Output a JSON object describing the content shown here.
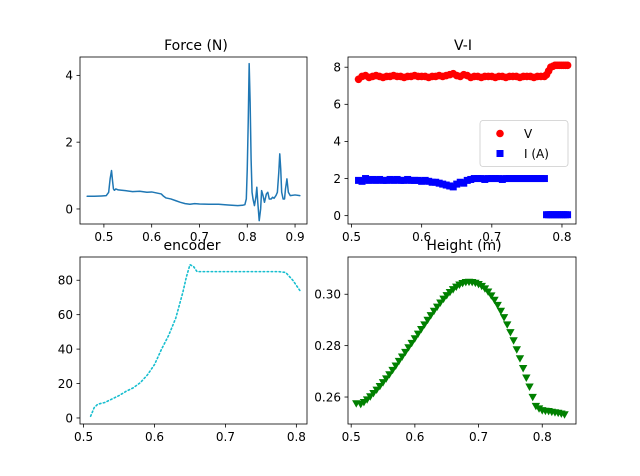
{
  "figure": {
    "background": "#ffffff"
  },
  "chart_data": [
    {
      "type": "line",
      "title": "Force (N)",
      "xlabel": "",
      "ylabel": "",
      "xlim": [
        0.45,
        0.925
      ],
      "ylim": [
        -0.45,
        4.55
      ],
      "xticks": [
        0.5,
        0.6,
        0.7,
        0.8,
        0.9
      ],
      "xtick_labels": [
        "0.5",
        "0.6",
        "0.7",
        "0.8",
        "0.9"
      ],
      "yticks": [
        0,
        2,
        4
      ],
      "ytick_labels": [
        "0",
        "2",
        "4"
      ],
      "grid": false,
      "series": [
        {
          "color": "#1f77b4",
          "style": "solid",
          "marker": "none",
          "x": [
            0.465,
            0.48,
            0.495,
            0.505,
            0.51,
            0.513,
            0.516,
            0.518,
            0.52,
            0.522,
            0.525,
            0.53,
            0.545,
            0.56,
            0.575,
            0.59,
            0.6,
            0.61,
            0.62,
            0.625,
            0.63,
            0.64,
            0.65,
            0.66,
            0.67,
            0.68,
            0.69,
            0.7,
            0.72,
            0.74,
            0.76,
            0.78,
            0.79,
            0.795,
            0.798,
            0.8,
            0.802,
            0.804,
            0.806,
            0.808,
            0.81,
            0.812,
            0.815,
            0.818,
            0.82,
            0.822,
            0.825,
            0.828,
            0.83,
            0.833,
            0.836,
            0.84,
            0.843,
            0.846,
            0.85,
            0.853,
            0.856,
            0.86,
            0.863,
            0.866,
            0.868,
            0.87,
            0.872,
            0.875,
            0.878,
            0.88,
            0.883,
            0.886,
            0.89,
            0.9,
            0.91
          ],
          "y": [
            0.38,
            0.38,
            0.39,
            0.4,
            0.5,
            0.9,
            1.15,
            0.85,
            0.6,
            0.56,
            0.6,
            0.57,
            0.55,
            0.52,
            0.53,
            0.5,
            0.51,
            0.48,
            0.45,
            0.38,
            0.33,
            0.3,
            0.25,
            0.2,
            0.16,
            0.14,
            0.16,
            0.15,
            0.14,
            0.14,
            0.12,
            0.1,
            0.11,
            0.13,
            0.3,
            1.2,
            2.6,
            4.35,
            3.2,
            1.5,
            0.5,
            0.3,
            0.1,
            0.35,
            0.65,
            0.2,
            -0.35,
            0.0,
            0.55,
            0.4,
            0.2,
            0.45,
            0.5,
            0.3,
            0.3,
            0.35,
            0.32,
            0.4,
            0.5,
            1.1,
            1.65,
            1.2,
            0.5,
            0.3,
            0.3,
            0.6,
            0.9,
            0.5,
            0.4,
            0.42,
            0.4
          ]
        }
      ]
    },
    {
      "type": "scatter",
      "title": "V-I",
      "xlabel": "",
      "ylabel": "",
      "xlim": [
        0.495,
        0.82
      ],
      "ylim": [
        -0.45,
        8.55
      ],
      "xticks": [
        0.5,
        0.6,
        0.7,
        0.8
      ],
      "xtick_labels": [
        "0.5",
        "0.6",
        "0.7",
        "0.8"
      ],
      "yticks": [
        0,
        2,
        4,
        6,
        8
      ],
      "ytick_labels": [
        "0",
        "2",
        "4",
        "6",
        "8"
      ],
      "grid": false,
      "legend": {
        "placement": "center-right",
        "entries": [
          "V",
          "I (A)"
        ]
      },
      "series": [
        {
          "name": "V",
          "color": "#ff0000",
          "marker": "circle",
          "x": [
            0.51,
            0.515,
            0.52,
            0.525,
            0.53,
            0.535,
            0.54,
            0.545,
            0.55,
            0.555,
            0.56,
            0.565,
            0.57,
            0.575,
            0.58,
            0.585,
            0.59,
            0.595,
            0.6,
            0.605,
            0.61,
            0.615,
            0.62,
            0.625,
            0.63,
            0.635,
            0.64,
            0.645,
            0.65,
            0.655,
            0.66,
            0.665,
            0.67,
            0.675,
            0.68,
            0.685,
            0.69,
            0.695,
            0.7,
            0.705,
            0.71,
            0.715,
            0.72,
            0.725,
            0.73,
            0.735,
            0.74,
            0.745,
            0.75,
            0.755,
            0.76,
            0.765,
            0.77,
            0.775,
            0.778,
            0.781,
            0.784,
            0.787,
            0.79,
            0.793,
            0.796,
            0.799,
            0.802,
            0.805,
            0.808
          ],
          "y": [
            7.35,
            7.5,
            7.55,
            7.45,
            7.5,
            7.55,
            7.5,
            7.45,
            7.5,
            7.5,
            7.55,
            7.5,
            7.5,
            7.45,
            7.5,
            7.5,
            7.55,
            7.5,
            7.5,
            7.5,
            7.45,
            7.5,
            7.5,
            7.55,
            7.5,
            7.55,
            7.6,
            7.65,
            7.55,
            7.5,
            7.6,
            7.55,
            7.45,
            7.5,
            7.5,
            7.45,
            7.5,
            7.5,
            7.5,
            7.45,
            7.5,
            7.5,
            7.45,
            7.5,
            7.5,
            7.5,
            7.45,
            7.5,
            7.5,
            7.5,
            7.45,
            7.5,
            7.5,
            7.5,
            7.6,
            7.8,
            8.0,
            8.05,
            8.1,
            8.1,
            8.1,
            8.1,
            8.1,
            8.1,
            8.1
          ]
        },
        {
          "name": "I (A)",
          "color": "#0000ff",
          "marker": "square",
          "x": [
            0.51,
            0.515,
            0.52,
            0.525,
            0.53,
            0.535,
            0.54,
            0.545,
            0.55,
            0.555,
            0.56,
            0.565,
            0.57,
            0.575,
            0.58,
            0.585,
            0.59,
            0.595,
            0.6,
            0.605,
            0.61,
            0.615,
            0.62,
            0.625,
            0.63,
            0.635,
            0.64,
            0.645,
            0.65,
            0.655,
            0.66,
            0.665,
            0.67,
            0.675,
            0.68,
            0.685,
            0.69,
            0.695,
            0.7,
            0.705,
            0.71,
            0.715,
            0.72,
            0.725,
            0.73,
            0.735,
            0.74,
            0.745,
            0.75,
            0.755,
            0.76,
            0.765,
            0.77,
            0.775,
            0.778,
            0.781,
            0.784,
            0.787,
            0.79,
            0.793,
            0.796,
            0.799,
            0.802,
            0.805,
            0.808
          ],
          "y": [
            1.9,
            1.85,
            2.0,
            1.9,
            1.95,
            1.9,
            1.95,
            1.9,
            1.9,
            1.95,
            1.9,
            1.95,
            1.9,
            1.9,
            1.95,
            1.9,
            1.9,
            1.9,
            1.85,
            1.9,
            1.85,
            1.8,
            1.8,
            1.75,
            1.7,
            1.65,
            1.6,
            1.55,
            1.7,
            1.8,
            1.75,
            1.9,
            1.95,
            2.0,
            2.0,
            2.0,
            1.95,
            2.0,
            2.0,
            2.0,
            2.0,
            1.95,
            2.0,
            2.0,
            2.0,
            2.0,
            2.0,
            2.0,
            2.0,
            2.0,
            2.0,
            2.0,
            2.0,
            2.0,
            0.05,
            0.05,
            0.05,
            0.05,
            0.05,
            0.05,
            0.05,
            0.05,
            0.05,
            0.05,
            0.05
          ]
        }
      ]
    },
    {
      "type": "line",
      "title": "encoder",
      "xlabel": "",
      "ylabel": "",
      "xlim": [
        0.495,
        0.815
      ],
      "ylim": [
        -3.5,
        93.5
      ],
      "xticks": [
        0.5,
        0.6,
        0.7,
        0.8
      ],
      "xtick_labels": [
        "0.5",
        "0.6",
        "0.7",
        "0.8"
      ],
      "yticks": [
        0,
        20,
        40,
        60,
        80
      ],
      "ytick_labels": [
        "0",
        "20",
        "40",
        "60",
        "80"
      ],
      "grid": false,
      "series": [
        {
          "color": "#17becf",
          "style": "dotted",
          "marker": "none",
          "x": [
            0.51,
            0.515,
            0.52,
            0.53,
            0.54,
            0.55,
            0.56,
            0.57,
            0.58,
            0.59,
            0.6,
            0.61,
            0.62,
            0.63,
            0.64,
            0.645,
            0.65,
            0.655,
            0.66,
            0.67,
            0.68,
            0.7,
            0.72,
            0.74,
            0.76,
            0.775,
            0.785,
            0.795,
            0.805
          ],
          "y": [
            1,
            6,
            8,
            9,
            11,
            13,
            15.5,
            17.5,
            20.5,
            25,
            31,
            40,
            48,
            58,
            73,
            82,
            89,
            88,
            85,
            85,
            85,
            85,
            85,
            85,
            85,
            85,
            84.5,
            80,
            74
          ]
        }
      ]
    },
    {
      "type": "scatter",
      "title": "Height (m)",
      "xlabel": "",
      "ylabel": "",
      "xlim": [
        0.495,
        0.853
      ],
      "ylim": [
        0.2495,
        0.3145
      ],
      "xticks": [
        0.5,
        0.6,
        0.7,
        0.8
      ],
      "xtick_labels": [
        "0.5",
        "0.6",
        "0.7",
        "0.8"
      ],
      "yticks": [
        0.26,
        0.28,
        0.3
      ],
      "ytick_labels": [
        "0.26",
        "0.28",
        "0.30"
      ],
      "grid": false,
      "series": [
        {
          "color": "#008000",
          "marker": "triangle-down",
          "x": [
            0.508,
            0.515,
            0.52,
            0.525,
            0.53,
            0.535,
            0.54,
            0.545,
            0.55,
            0.555,
            0.56,
            0.565,
            0.57,
            0.575,
            0.58,
            0.585,
            0.59,
            0.595,
            0.6,
            0.605,
            0.61,
            0.615,
            0.62,
            0.625,
            0.63,
            0.635,
            0.64,
            0.645,
            0.65,
            0.655,
            0.66,
            0.665,
            0.67,
            0.675,
            0.68,
            0.685,
            0.69,
            0.695,
            0.7,
            0.705,
            0.71,
            0.715,
            0.72,
            0.725,
            0.73,
            0.735,
            0.74,
            0.745,
            0.75,
            0.755,
            0.76,
            0.765,
            0.77,
            0.775,
            0.78,
            0.785,
            0.79,
            0.795,
            0.8,
            0.805,
            0.81,
            0.815,
            0.82,
            0.825,
            0.83,
            0.835
          ],
          "y": [
            0.2575,
            0.2572,
            0.258,
            0.259,
            0.2602,
            0.2615,
            0.2628,
            0.2642,
            0.2657,
            0.2672,
            0.2688,
            0.2705,
            0.2722,
            0.274,
            0.2757,
            0.2775,
            0.2793,
            0.281,
            0.2828,
            0.2846,
            0.2864,
            0.2882,
            0.29,
            0.2918,
            0.2935,
            0.2951,
            0.2967,
            0.2982,
            0.2996,
            0.3008,
            0.3019,
            0.3029,
            0.3037,
            0.3043,
            0.3047,
            0.3048,
            0.3047,
            0.3044,
            0.3039,
            0.3032,
            0.3022,
            0.301,
            0.2995,
            0.2978,
            0.2958,
            0.2935,
            0.291,
            0.2882,
            0.2852,
            0.282,
            0.2785,
            0.275,
            0.2712,
            0.2675,
            0.264,
            0.26,
            0.2565,
            0.2555,
            0.2548,
            0.2546,
            0.2545,
            0.2542,
            0.254,
            0.2538,
            0.2535,
            0.2532
          ]
        }
      ]
    }
  ]
}
